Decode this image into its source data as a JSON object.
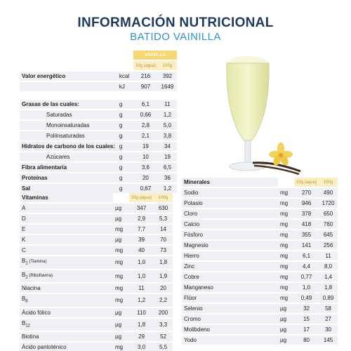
{
  "title": "INFORMACIÓN NUTRICIONAL",
  "subtitle": "BATIDO VAINILLA",
  "product_header": "VAINILLA",
  "serving_col": "33g",
  "serving_col_suffix": "(agua)",
  "per100_col": "100g",
  "energy": {
    "label": "Valor energético",
    "rows": [
      {
        "unit": "kcal",
        "v1": "216",
        "v2": "392"
      },
      {
        "unit": "kJ",
        "v1": "907",
        "v2": "1649"
      }
    ]
  },
  "macros": [
    {
      "label": "Grasas de las cuales:",
      "unit": "g",
      "v1": "6,1",
      "v2": "11",
      "bold": true
    },
    {
      "label": "Saturadas",
      "unit": "g",
      "v1": "0,66",
      "v2": "1,2",
      "indent": true
    },
    {
      "label": "Monoinsaturadas",
      "unit": "g",
      "v1": "2,8",
      "v2": "5,0",
      "indent": true
    },
    {
      "label": "Poliinsaturadas",
      "unit": "g",
      "v1": "2,1",
      "v2": "3,8",
      "indent": true
    },
    {
      "label": "Hidratos de carbono de los cuales:",
      "unit": "g",
      "v1": "19",
      "v2": "34",
      "bold": true
    },
    {
      "label": "Azúcares",
      "unit": "g",
      "v1": "10",
      "v2": "19",
      "indent": true
    },
    {
      "label": "Fibra alimentaria",
      "unit": "g",
      "v1": "3,6",
      "v2": "6,5",
      "bold": true
    },
    {
      "label": "Proteínas",
      "unit": "g",
      "v1": "20",
      "v2": "36",
      "bold": true
    },
    {
      "label": "Sal",
      "unit": "g",
      "v1": "0,67",
      "v2": "1,2",
      "bold": true
    }
  ],
  "vitamins": {
    "label": "Vitaminas",
    "rows": [
      {
        "name": "A",
        "unit": "µg",
        "v1": "347",
        "v2": "630"
      },
      {
        "name": "D",
        "unit": "µg",
        "v1": "2,9",
        "v2": "5,3"
      },
      {
        "name": "E",
        "unit": "mg",
        "v1": "7,7",
        "v2": "14"
      },
      {
        "name": "K",
        "unit": "µg",
        "v1": "39",
        "v2": "70"
      },
      {
        "name": "C",
        "unit": "mg",
        "v1": "40",
        "v2": "73"
      },
      {
        "name": "B",
        "sub": "1",
        "suffix": " (Tiamina)",
        "unit": "mg",
        "v1": "1,0",
        "v2": "1,8"
      },
      {
        "name": "B",
        "sub": "2",
        "suffix": " (Riboflavina)",
        "unit": "mg",
        "v1": "1,0",
        "v2": "1,9"
      },
      {
        "name": "Niacina",
        "unit": "mg",
        "v1": "11",
        "v2": "20"
      },
      {
        "name": "B",
        "sub": "6",
        "unit": "mg",
        "v1": "1,2",
        "v2": "2,2"
      },
      {
        "name": "Ácido fólico",
        "unit": "µg",
        "v1": "110",
        "v2": "200"
      },
      {
        "name": "B",
        "sub": "12",
        "unit": "µg",
        "v1": "1,8",
        "v2": "3,3"
      },
      {
        "name": "Biotina",
        "unit": "µg",
        "v1": "29",
        "v2": "52"
      },
      {
        "name": "Ácido pantoténico",
        "unit": "mg",
        "v1": "3,0",
        "v2": "5,5"
      }
    ]
  },
  "minerals": {
    "label": "Minerales",
    "rows": [
      {
        "name": "Sodio",
        "unit": "mg",
        "v1": "270",
        "v2": "490"
      },
      {
        "name": "Potasio",
        "unit": "mg",
        "v1": "946",
        "v2": "1720"
      },
      {
        "name": "Cloro",
        "unit": "mg",
        "v1": "378",
        "v2": "650"
      },
      {
        "name": "Calcio",
        "unit": "mg",
        "v1": "418",
        "v2": "760"
      },
      {
        "name": "Fósforo",
        "unit": "mg",
        "v1": "355",
        "v2": "645"
      },
      {
        "name": "Magnesio",
        "unit": "mg",
        "v1": "141",
        "v2": "256"
      },
      {
        "name": "Hierro",
        "unit": "mg",
        "v1": "6,1",
        "v2": "11"
      },
      {
        "name": "Zinc",
        "unit": "mg",
        "v1": "4,4",
        "v2": "8,0"
      },
      {
        "name": "Cobre",
        "unit": "mg",
        "v1": "0,77",
        "v2": "1,4"
      },
      {
        "name": "Manganeso",
        "unit": "mg",
        "v1": "1,0",
        "v2": "1,8"
      },
      {
        "name": "Flúor",
        "unit": "mg",
        "v1": "0,49",
        "v2": "0,89"
      },
      {
        "name": "Selenio",
        "unit": "µg",
        "v1": "32",
        "v2": "58"
      },
      {
        "name": "Cromo",
        "unit": "µg",
        "v1": "15",
        "v2": "27"
      },
      {
        "name": "Molibdeno",
        "unit": "µg",
        "v1": "17",
        "v2": "30"
      },
      {
        "name": "Yodo",
        "unit": "µg",
        "v1": "80",
        "v2": "145"
      }
    ]
  }
}
